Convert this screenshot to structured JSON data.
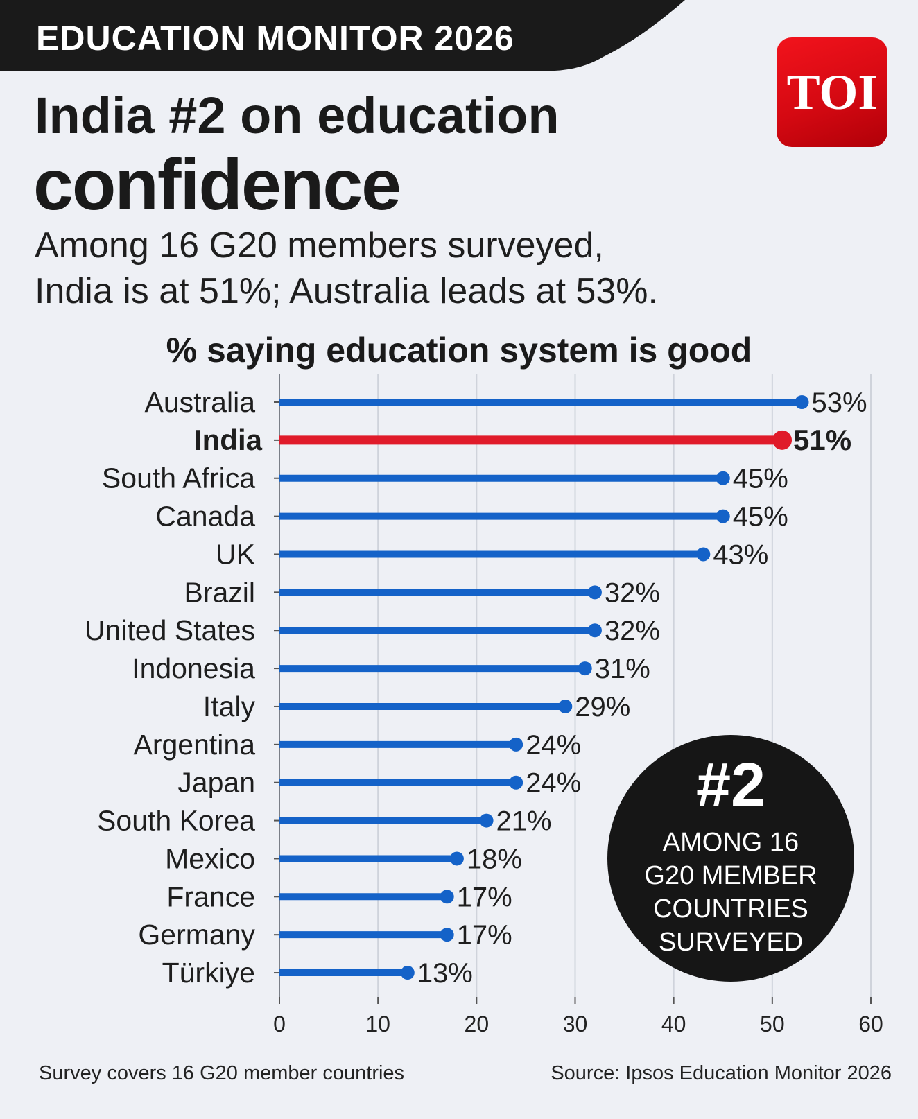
{
  "header": {
    "banner": "EDUCATION MONITOR 2026",
    "logo": "TOI",
    "title_line1": "India #2 on education",
    "title_line2": "confidence",
    "subtitle_line1": "Among 16 G20 members surveyed,",
    "subtitle_line2": "India is at 51%; Australia leads at 53%."
  },
  "badge": {
    "rank": "#2",
    "lines": [
      "AMONG 16",
      "G20 MEMBER",
      "COUNTRIES",
      "SURVEYED"
    ]
  },
  "footer": {
    "left": "Survey covers 16 G20 member countries",
    "right": "Source: Ipsos Education Monitor 2026"
  },
  "colors": {
    "bar": "#1462c8",
    "highlight": "#e01b2a",
    "banner": "#1a1a1a",
    "badge": "#161616",
    "background": "#eef0f5"
  },
  "chart_data": {
    "type": "bar",
    "orientation": "horizontal",
    "style": "lollipop",
    "title": "% saying education system is good",
    "categories": [
      "Australia",
      "India",
      "South Africa",
      "Canada",
      "UK",
      "Brazil",
      "United States",
      "Indonesia",
      "Italy",
      "Argentina",
      "Japan",
      "South Korea",
      "Mexico",
      "France",
      "Germany",
      "Türkiye"
    ],
    "values": [
      53,
      51,
      45,
      45,
      43,
      32,
      32,
      31,
      29,
      24,
      24,
      21,
      18,
      17,
      17,
      13
    ],
    "value_labels": [
      "53%",
      "51%",
      "45%",
      "45%",
      "43%",
      "32%",
      "32%",
      "31%",
      "29%",
      "24%",
      "24%",
      "21%",
      "18%",
      "17%",
      "17%",
      "13%"
    ],
    "highlight": "India",
    "xlim": [
      0,
      60
    ],
    "xticks": [
      0,
      10,
      20,
      30,
      40,
      50,
      60
    ],
    "grid": true,
    "legend": "none"
  }
}
